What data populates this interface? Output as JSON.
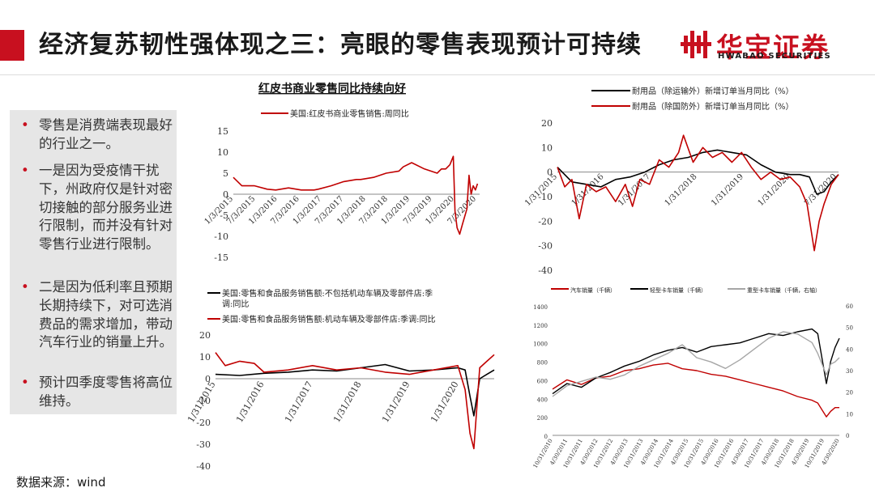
{
  "header": {
    "title": "经济复苏韧性强体现之三：亮眼的零售表现预计可持续",
    "accent_color": "#c8101f"
  },
  "logo": {
    "cn": "华宝证券",
    "en": "HWABAO SECURITIES"
  },
  "sidebar": {
    "bullets": [
      "零售是消费端表现最好的行业之一。",
      "一是因为受疫情干扰下，州政府仅是针对密切接触的部分服务业进行限制，而并没有针对零售行业进行限制。",
      "二是因为低利率且预期长期持续下，对可选消费品的需求增加，带动汽车行业的销量上升。",
      "预计四季度零售将高位维持。"
    ]
  },
  "footer": {
    "source": "数据来源：wind"
  },
  "chart_data": [
    {
      "id": "redbook",
      "type": "line",
      "title": "红皮书商业零售同比持续向好",
      "x_ticks": [
        "1/3/2015",
        "7/3/2015",
        "1/3/2016",
        "7/3/2016",
        "1/3/2017",
        "7/3/2017",
        "1/3/2018",
        "7/3/2018",
        "1/3/2019",
        "7/3/2019",
        "1/3/2020",
        "7/3/2020"
      ],
      "ylim": [
        -15,
        15
      ],
      "y_ticks": [
        15,
        10,
        5,
        0,
        -5,
        -10,
        -15
      ],
      "x_range": [
        2015.0,
        2020.8
      ],
      "series": [
        {
          "name": "美国:红皮书商业零售销售:周同比",
          "color": "#c00000",
          "x": [
            2015.0,
            2015.2,
            2015.5,
            2015.8,
            2016.0,
            2016.3,
            2016.6,
            2016.9,
            2017.0,
            2017.3,
            2017.6,
            2017.9,
            2018.0,
            2018.3,
            2018.6,
            2018.9,
            2019.0,
            2019.2,
            2019.5,
            2019.8,
            2019.9,
            2020.0,
            2020.1,
            2020.18,
            2020.22,
            2020.27,
            2020.33,
            2020.4,
            2020.5,
            2020.55,
            2020.6,
            2020.65,
            2020.7,
            2020.75
          ],
          "y": [
            4.0,
            2.0,
            2.0,
            1.2,
            1.0,
            1.5,
            1.0,
            1.0,
            1.2,
            2.0,
            3.0,
            3.5,
            3.5,
            4.0,
            5.0,
            5.5,
            6.5,
            7.5,
            6.0,
            5.0,
            6.0,
            6.0,
            7.0,
            9.0,
            -4.0,
            -8.0,
            -9.5,
            -7.0,
            -3.5,
            4.5,
            0.0,
            2.0,
            1.0,
            2.5
          ]
        }
      ]
    },
    {
      "id": "durable-orders",
      "type": "line",
      "x_ticks": [
        "1/31/2015",
        "1/31/2016",
        "1/31/2017",
        "1/31/2018",
        "1/31/2019",
        "1/31/2020",
        "7/31/2020"
      ],
      "ylim": [
        -40,
        20
      ],
      "y_ticks": [
        20,
        10,
        0,
        -10,
        -20,
        -30,
        -40
      ],
      "x_range": [
        2015.0,
        2020.8
      ],
      "series": [
        {
          "name": "耐用品（除运输外）新增订单当月同比（%）",
          "color": "#000000",
          "x": [
            2015.0,
            2015.3,
            2015.6,
            2015.9,
            2016.2,
            2016.5,
            2016.8,
            2017.1,
            2017.4,
            2017.7,
            2018.0,
            2018.3,
            2018.6,
            2018.9,
            2019.2,
            2019.5,
            2019.8,
            2020.0,
            2020.2,
            2020.35,
            2020.5,
            2020.65,
            2020.8
          ],
          "y": [
            2,
            -4,
            -5,
            -6,
            -3,
            -2,
            0,
            3,
            5,
            6,
            8,
            9,
            8,
            7,
            3,
            0,
            -1,
            -1,
            -2,
            -9,
            -8,
            -4,
            -1
          ]
        },
        {
          "name": "耐用品（除国防外）新增订单当月同比（%）",
          "color": "#c00000",
          "x": [
            2015.0,
            2015.15,
            2015.3,
            2015.45,
            2015.6,
            2015.8,
            2016.0,
            2016.2,
            2016.4,
            2016.55,
            2016.7,
            2016.9,
            2017.1,
            2017.3,
            2017.5,
            2017.6,
            2017.8,
            2018.0,
            2018.2,
            2018.4,
            2018.6,
            2018.8,
            2019.0,
            2019.2,
            2019.4,
            2019.6,
            2019.8,
            2020.0,
            2020.15,
            2020.3,
            2020.4,
            2020.5,
            2020.65,
            2020.8
          ],
          "y": [
            2,
            -6,
            -3,
            -19,
            -5,
            -8,
            -6,
            -12,
            -5,
            -14,
            -3,
            -5,
            5,
            2,
            8,
            15,
            4,
            10,
            6,
            8,
            4,
            8,
            2,
            -3,
            0,
            -3,
            -2,
            -6,
            -13,
            -32,
            -20,
            -13,
            -5,
            -1
          ]
        }
      ]
    },
    {
      "id": "retail-sales",
      "type": "line",
      "x_ticks": [
        "1/31/2015",
        "1/31/2016",
        "1/31/2017",
        "1/31/2018",
        "1/31/2019",
        "1/31/2020"
      ],
      "ylim": [
        -40,
        20
      ],
      "y_ticks": [
        20,
        10,
        0,
        -10,
        -20,
        -30,
        -40
      ],
      "x_range": [
        2015.0,
        2020.75
      ],
      "series": [
        {
          "name": "美国:零售和食品服务销售额:不包括机动车辆及零部件店:季调:同比",
          "color": "#000000",
          "x": [
            2015.0,
            2015.5,
            2016.0,
            2016.5,
            2017.0,
            2017.5,
            2018.0,
            2018.5,
            2019.0,
            2019.5,
            2020.0,
            2020.15,
            2020.25,
            2020.33,
            2020.45,
            2020.6,
            2020.75
          ],
          "y": [
            2.0,
            1.5,
            2.5,
            3.0,
            4.0,
            3.5,
            5.0,
            6.5,
            3.5,
            4.0,
            5.0,
            4.0,
            -8.0,
            -17.0,
            0.0,
            2.0,
            4.0
          ]
        },
        {
          "name": "美国:零售和食品服务销售额:机动车辆及零部件店:季调:同比",
          "color": "#c00000",
          "x": [
            2015.0,
            2015.2,
            2015.5,
            2015.8,
            2016.0,
            2016.5,
            2017.0,
            2017.5,
            2018.0,
            2018.5,
            2019.0,
            2019.5,
            2020.0,
            2020.15,
            2020.25,
            2020.33,
            2020.45,
            2020.6,
            2020.75
          ],
          "y": [
            12.0,
            6.0,
            8.0,
            7.0,
            3.0,
            4.0,
            6.0,
            4.0,
            5.0,
            3.0,
            2.0,
            4.0,
            6.0,
            -5.0,
            -25.0,
            -32.0,
            5.0,
            8.0,
            11.0
          ]
        }
      ]
    },
    {
      "id": "vehicle-sales",
      "type": "line",
      "x_ticks": [
        "10/31/2010",
        "4/30/2011",
        "10/31/2011",
        "4/30/2012",
        "10/31/2012",
        "4/30/2013",
        "10/31/2013",
        "4/30/2014",
        "10/31/2014",
        "4/30/2015",
        "10/31/2015",
        "4/30/2016",
        "10/31/2016",
        "4/30/2017",
        "10/31/2017",
        "4/30/2018",
        "10/31/2018",
        "4/30/2019",
        "10/31/2019",
        "4/30/2020"
      ],
      "ylim": [
        0,
        1400
      ],
      "y_ticks": [
        1400,
        1200,
        1000,
        800,
        600,
        400,
        200,
        0
      ],
      "y2lim": [
        0,
        60
      ],
      "y2_ticks": [
        60,
        50,
        40,
        30,
        20,
        10,
        0
      ],
      "x_range": [
        2010.8,
        2020.75
      ],
      "series": [
        {
          "name": "汽车销量（千辆）",
          "color": "#c00000",
          "axis": "left",
          "x": [
            2010.8,
            2011.3,
            2011.8,
            2012.3,
            2012.8,
            2013.3,
            2013.8,
            2014.3,
            2014.8,
            2015.3,
            2015.8,
            2016.3,
            2016.8,
            2017.3,
            2017.8,
            2018.3,
            2018.8,
            2019.3,
            2019.8,
            2020.0,
            2020.3,
            2020.45,
            2020.6,
            2020.75
          ],
          "y": [
            500,
            600,
            550,
            620,
            640,
            700,
            720,
            760,
            780,
            720,
            700,
            660,
            640,
            600,
            560,
            520,
            480,
            420,
            380,
            350,
            200,
            260,
            300,
            300
          ]
        },
        {
          "name": "轻型卡车销量（千辆）",
          "color": "#000000",
          "axis": "left",
          "x": [
            2010.8,
            2011.3,
            2011.8,
            2012.3,
            2012.8,
            2013.3,
            2013.8,
            2014.3,
            2014.8,
            2015.3,
            2015.8,
            2016.3,
            2016.8,
            2017.3,
            2017.8,
            2018.3,
            2018.8,
            2019.3,
            2019.8,
            2020.0,
            2020.3,
            2020.45,
            2020.6,
            2020.75
          ],
          "y": [
            450,
            560,
            520,
            620,
            680,
            750,
            800,
            870,
            920,
            950,
            900,
            960,
            980,
            1000,
            1050,
            1100,
            1080,
            1120,
            1150,
            1100,
            560,
            800,
            950,
            1050
          ]
        },
        {
          "name": "重型卡车销量（千辆，右轴）",
          "color": "#a6a6a6",
          "axis": "right",
          "x": [
            2010.8,
            2011.3,
            2011.8,
            2012.3,
            2012.8,
            2013.3,
            2013.8,
            2014.3,
            2014.8,
            2015.3,
            2015.8,
            2016.3,
            2016.8,
            2017.3,
            2017.8,
            2018.3,
            2018.8,
            2019.3,
            2019.8,
            2020.0,
            2020.3,
            2020.45,
            2020.6,
            2020.75
          ],
          "y": [
            18,
            23,
            25,
            27,
            26,
            28,
            32,
            35,
            38,
            42,
            36,
            34,
            31,
            35,
            40,
            45,
            48,
            47,
            43,
            38,
            28,
            33,
            34,
            36
          ]
        }
      ]
    }
  ]
}
